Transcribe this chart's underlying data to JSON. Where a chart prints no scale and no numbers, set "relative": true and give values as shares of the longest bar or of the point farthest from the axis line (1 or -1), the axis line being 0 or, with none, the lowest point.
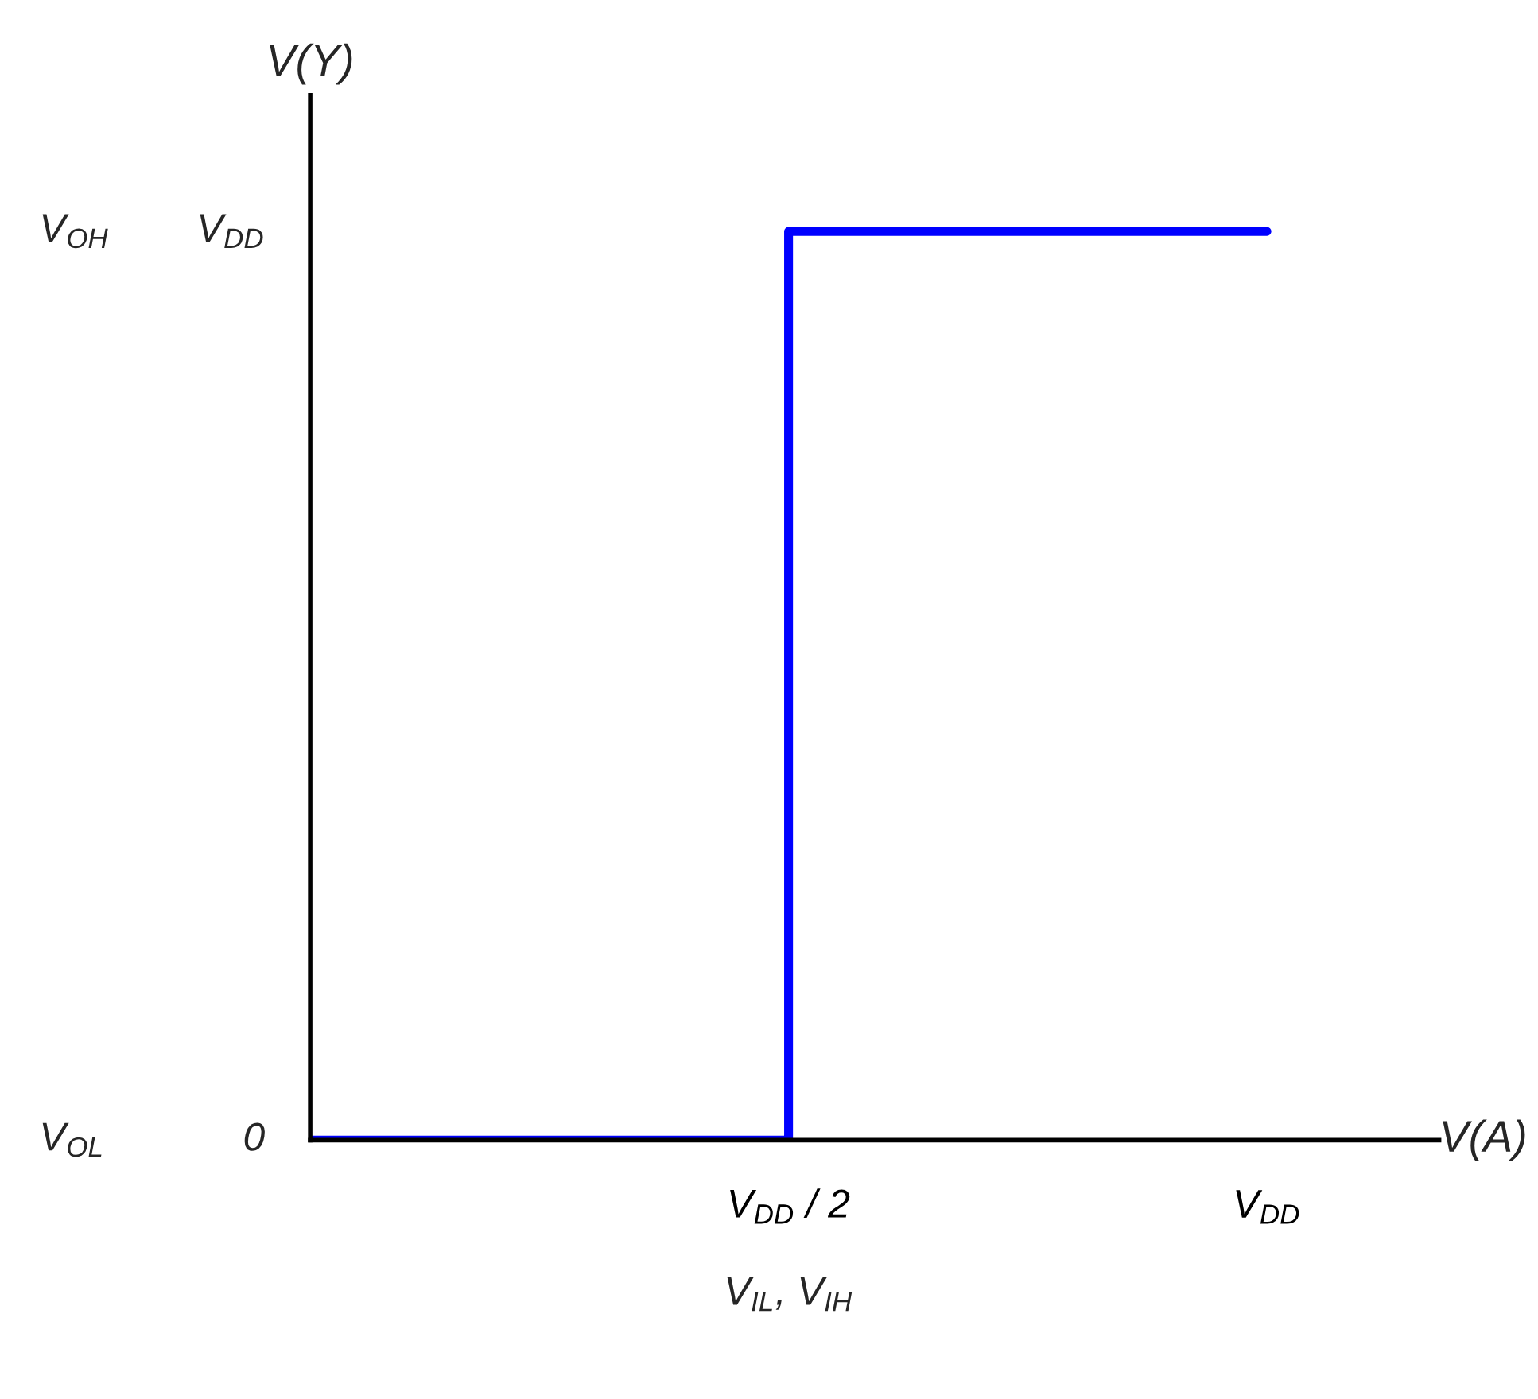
{
  "chart_data": {
    "type": "step",
    "relative": true,
    "xlabel": "V(A)",
    "ylabel": "V(Y)",
    "categories": [
      null,
      "V$_{DD}$ / 2",
      "V$_{DD}$"
    ],
    "series": [
      {
        "color": "#0000ff",
        "values": [
          0,
          1,
          1
        ]
      }
    ],
    "annotations": [
      "V$_{OL}$",
      "0",
      "V$_{OH}$",
      "V$_{DD}$",
      "V$_{IL}$, V$_{IH}$"
    ]
  }
}
